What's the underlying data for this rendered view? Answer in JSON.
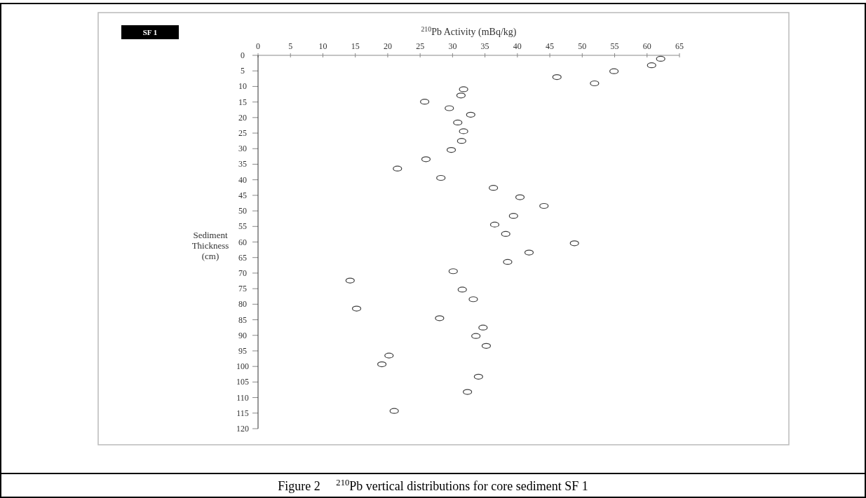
{
  "chart_data": {
    "type": "scatter",
    "title": "Figure 2     $^{210}$Pb vertical distributions for core sediment SF 1",
    "xlabel": "$^{210}$Pb Activity (mBq/kg)",
    "ylabel": "Sediment Thickness (cm)",
    "annotations": [
      "SF 1"
    ],
    "x": [
      62.1,
      60.7,
      54.9,
      46.1,
      51.9,
      31.7,
      31.3,
      25.7,
      29.5,
      32.8,
      30.8,
      31.7,
      31.4,
      29.8,
      25.9,
      21.5,
      28.2,
      36.3,
      40.4,
      44.1,
      39.4,
      36.5,
      38.2,
      48.8,
      41.8,
      38.5,
      30.1,
      14.2,
      31.5,
      33.2,
      15.2,
      28.0,
      34.7,
      33.6,
      35.2,
      20.2,
      19.1,
      34.0,
      32.3,
      21.0
    ],
    "values": [
      1.1,
      3.2,
      5.1,
      7.0,
      9.0,
      10.9,
      12.9,
      14.9,
      17.0,
      19.1,
      21.6,
      24.4,
      27.5,
      30.4,
      33.4,
      36.4,
      39.4,
      42.6,
      45.6,
      48.4,
      51.6,
      54.4,
      57.4,
      60.4,
      63.4,
      66.4,
      69.4,
      72.4,
      75.3,
      78.4,
      81.4,
      84.5,
      87.5,
      90.2,
      93.4,
      96.5,
      99.3,
      103.3,
      108.2,
      114.3
    ],
    "color": "#404040",
    "marker": "circle",
    "xlim": [
      0,
      65
    ],
    "xticks": [
      0,
      5,
      10,
      15,
      20,
      25,
      30,
      35,
      40,
      45,
      50,
      55,
      60,
      65
    ],
    "ylim": [
      120,
      0
    ],
    "yticks": [
      0,
      5,
      10,
      15,
      20,
      25,
      30,
      35,
      40,
      45,
      50,
      55,
      60,
      65,
      70,
      75,
      80,
      85,
      90,
      95,
      100,
      105,
      110,
      115,
      120
    ],
    "grid": false
  }
}
